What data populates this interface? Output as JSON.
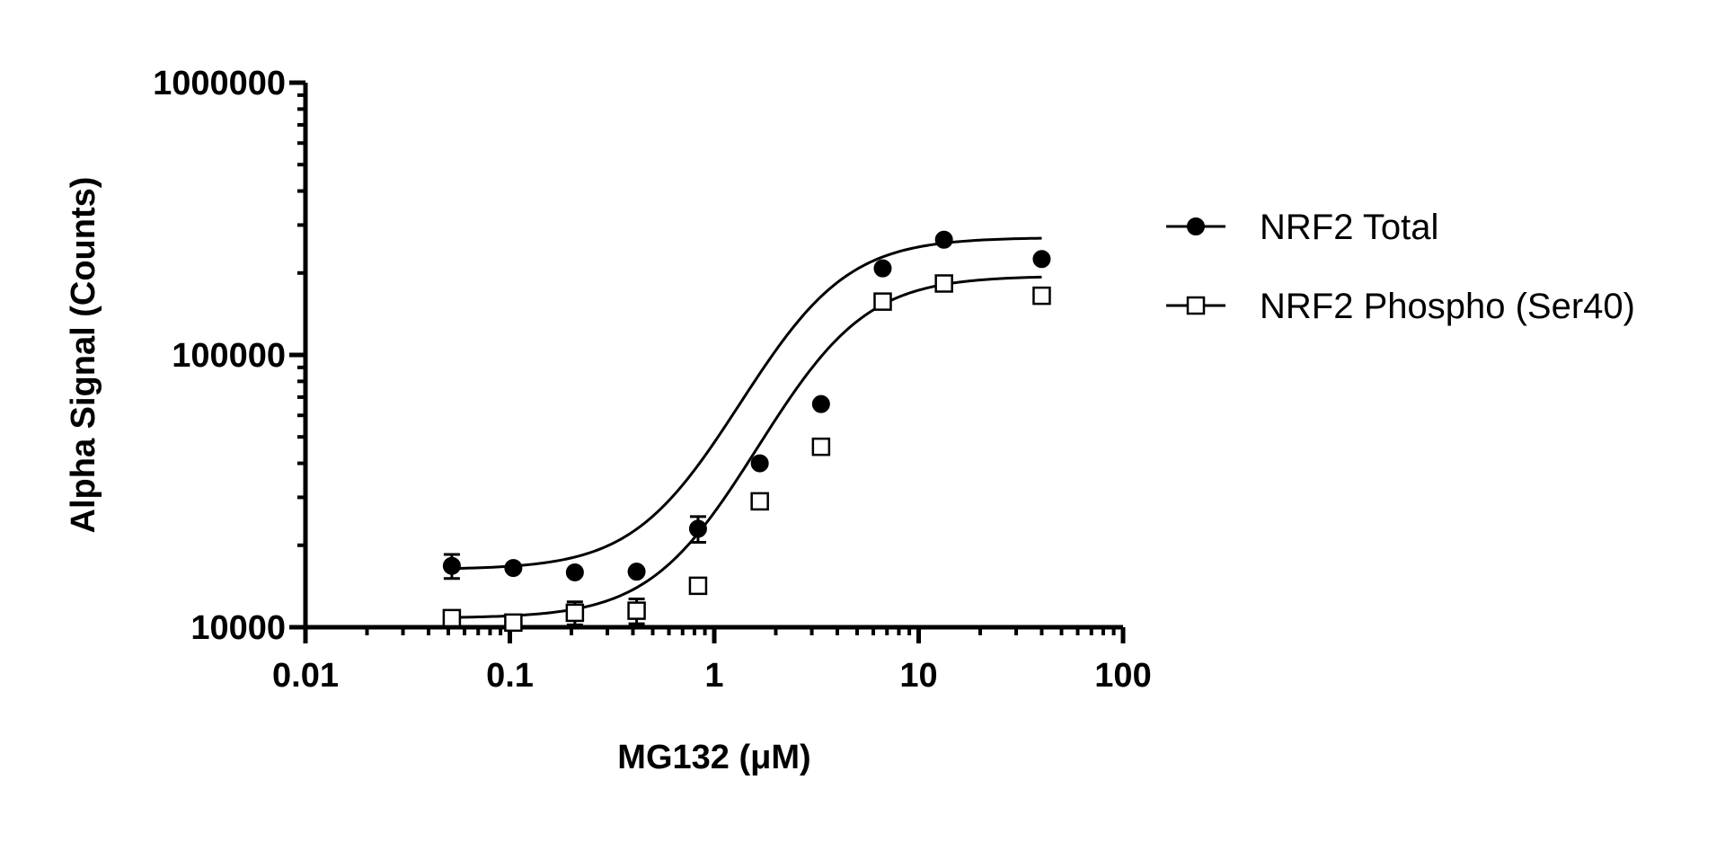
{
  "chart_data": {
    "type": "scatter",
    "xlabel": "MG132 (μM)",
    "ylabel": "Alpha Signal (Counts)",
    "x_scale": "log",
    "y_scale": "log",
    "xlim": [
      0.01,
      100
    ],
    "ylim": [
      10000,
      1000000
    ],
    "x_ticks": [
      0.01,
      0.1,
      1,
      10,
      100
    ],
    "x_tick_labels": [
      "0.01",
      "0.1",
      "1",
      "10",
      "100"
    ],
    "y_ticks": [
      10000,
      100000,
      1000000
    ],
    "y_tick_labels": [
      "10000",
      "100000",
      "1000000"
    ],
    "legend_position": "right",
    "grid": false,
    "series": [
      {
        "name": "NRF2 Total",
        "marker": "filled-circle",
        "color": "#000000",
        "x": [
          0.052,
          0.104,
          0.208,
          0.417,
          0.833,
          1.67,
          3.33,
          6.67,
          13.3,
          40
        ],
        "y": [
          16800,
          16500,
          15900,
          16000,
          23000,
          40000,
          66000,
          208000,
          265000,
          225000
        ],
        "error": [
          1700,
          0,
          0,
          0,
          2500,
          0,
          0,
          0,
          0,
          0
        ],
        "fit": {
          "bottom": 16300,
          "top": 270000,
          "ec50": 2.8,
          "hill": 1.9
        }
      },
      {
        "name": "NRF2 Phospho (Ser40)",
        "marker": "open-square",
        "color": "#000000",
        "x": [
          0.052,
          0.104,
          0.208,
          0.417,
          0.833,
          1.67,
          3.33,
          6.67,
          13.3,
          40
        ],
        "y": [
          10800,
          10400,
          11300,
          11500,
          14200,
          29000,
          46000,
          157000,
          183000,
          165000
        ],
        "error": [
          600,
          0,
          1100,
          1200,
          0,
          0,
          0,
          0,
          0,
          0
        ],
        "fit": {
          "bottom": 10800,
          "top": 195000,
          "ec50": 3.5,
          "hill": 1.9
        }
      }
    ]
  }
}
